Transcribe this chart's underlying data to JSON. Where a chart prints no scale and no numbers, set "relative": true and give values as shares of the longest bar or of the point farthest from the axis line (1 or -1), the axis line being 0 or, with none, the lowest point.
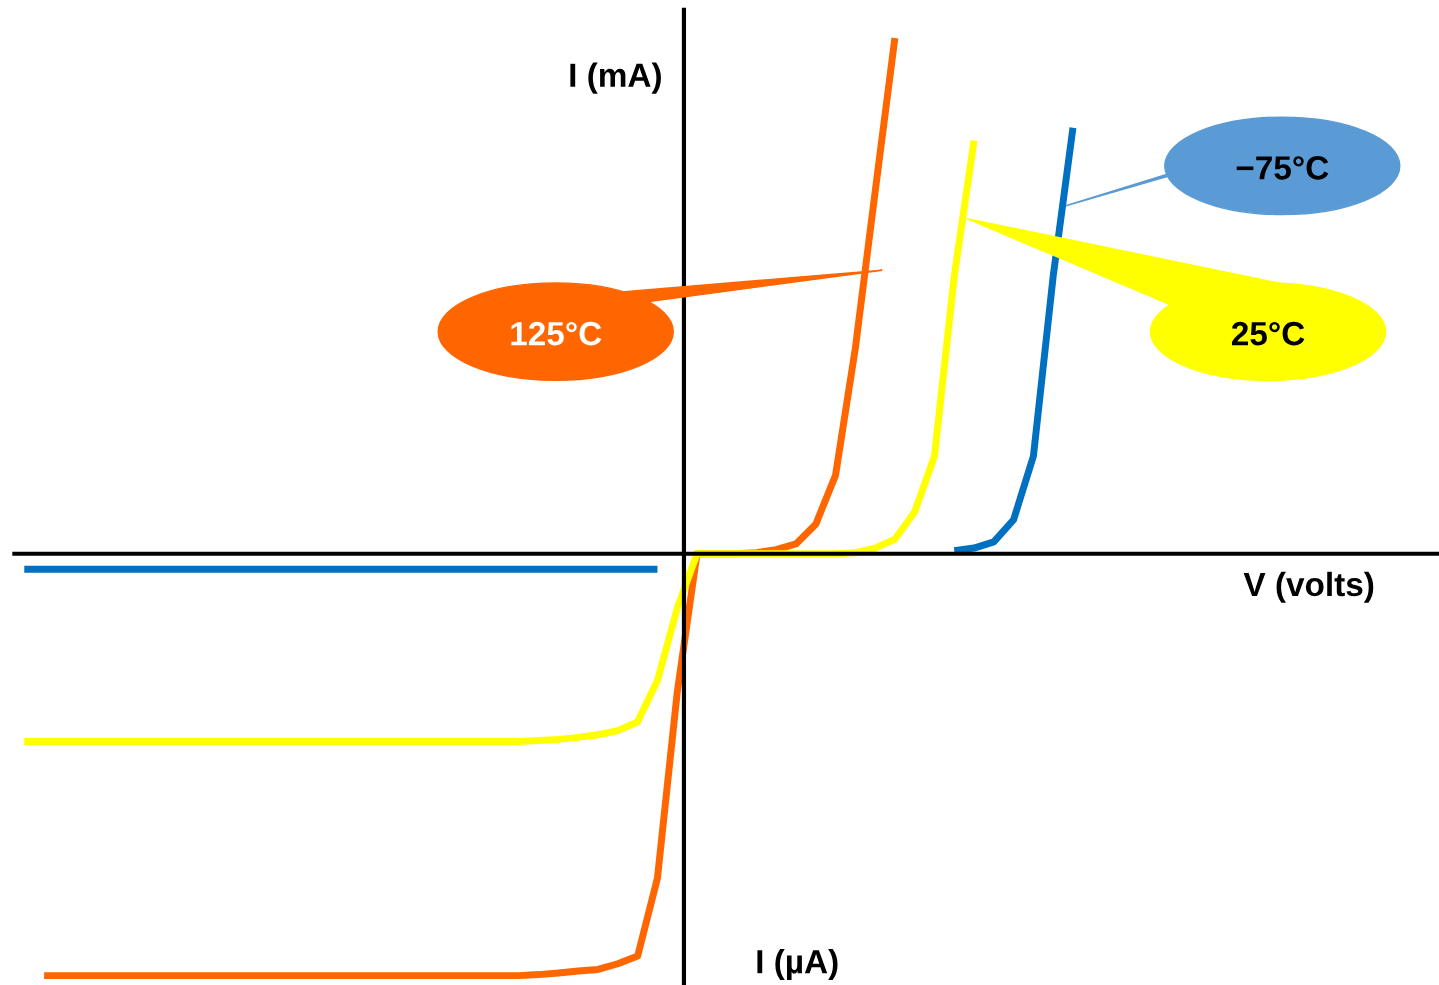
{
  "chart_data": {
    "type": "line",
    "relative": true,
    "ylabel": "I (mA)",
    "xlabel": "V (volts)",
    "annotations": [
      "I (µA)"
    ],
    "marker": "none",
    "line_style": "solid",
    "categories": [
      null,
      null,
      null,
      null,
      null,
      null,
      null,
      null,
      null,
      null,
      null,
      null,
      null,
      null,
      null,
      null,
      null,
      null,
      null,
      null,
      null,
      null,
      null,
      null,
      null,
      null,
      null,
      null,
      null,
      null,
      null,
      null,
      null,
      null,
      null,
      null,
      null,
      null,
      null,
      null,
      null,
      null,
      null,
      null,
      null,
      null,
      null,
      null,
      null,
      null,
      null,
      null,
      null,
      null,
      null,
      null,
      null,
      null,
      null,
      null,
      null,
      null,
      null,
      null,
      null,
      null,
      null,
      null,
      null,
      null,
      null,
      null
    ],
    "series": [
      {
        "name": "125°C",
        "color": "#ff6600",
        "values": [
          null,
          -0.818,
          -0.818,
          -0.818,
          -0.818,
          -0.818,
          -0.818,
          -0.818,
          -0.818,
          -0.818,
          -0.818,
          -0.818,
          -0.818,
          -0.818,
          -0.818,
          -0.818,
          -0.818,
          -0.818,
          -0.818,
          -0.818,
          -0.818,
          -0.818,
          -0.818,
          -0.818,
          -0.818,
          -0.818,
          -0.816,
          -0.813,
          -0.809,
          -0.806,
          -0.795,
          -0.78,
          -0.629,
          -0.269,
          0,
          0,
          0,
          0.002,
          0.008,
          0.019,
          0.057,
          0.152,
          0.398,
          0.701,
          1.0,
          null,
          null,
          null,
          null,
          null,
          null,
          null,
          null,
          null,
          null,
          null,
          null,
          null,
          null,
          null,
          null,
          null,
          null,
          null,
          null,
          null,
          null,
          null,
          null,
          null,
          null,
          null
        ]
      },
      {
        "name": "25°C",
        "color": "#ffff00",
        "values": [
          -0.364,
          -0.364,
          -0.364,
          -0.364,
          -0.364,
          -0.364,
          -0.364,
          -0.364,
          -0.364,
          -0.364,
          -0.364,
          -0.364,
          -0.364,
          -0.364,
          -0.364,
          -0.364,
          -0.364,
          -0.364,
          -0.364,
          -0.364,
          -0.364,
          -0.364,
          -0.364,
          -0.364,
          -0.364,
          -0.364,
          -0.362,
          -0.36,
          -0.356,
          -0.351,
          -0.343,
          -0.326,
          -0.246,
          -0.106,
          0,
          0,
          0,
          0,
          0,
          0,
          0,
          0,
          0.002,
          0.011,
          0.028,
          0.081,
          0.189,
          0.538,
          0.801,
          null,
          null,
          null,
          null,
          null,
          null,
          null,
          null,
          null,
          null,
          null,
          null,
          null,
          null,
          null,
          null,
          null,
          null,
          null,
          null,
          null,
          null,
          null
        ]
      },
      {
        "name": "−75°C",
        "color": "#0070c0",
        "values": [
          -0.03,
          -0.03,
          -0.03,
          -0.03,
          -0.03,
          -0.03,
          -0.03,
          -0.03,
          -0.03,
          -0.03,
          -0.03,
          -0.03,
          -0.03,
          -0.03,
          -0.03,
          -0.03,
          -0.03,
          -0.03,
          -0.03,
          -0.03,
          -0.03,
          -0.03,
          -0.03,
          -0.03,
          -0.03,
          -0.03,
          -0.03,
          -0.03,
          -0.03,
          -0.03,
          -0.03,
          -0.03,
          -0.03,
          null,
          null,
          null,
          null,
          null,
          null,
          null,
          null,
          null,
          null,
          null,
          null,
          null,
          null,
          0.006,
          0.011,
          0.023,
          0.066,
          0.189,
          0.538,
          0.826,
          null,
          null,
          null,
          null,
          null,
          null,
          null,
          null,
          null,
          null,
          null,
          null,
          null,
          null,
          null,
          null,
          null,
          null
        ]
      }
    ]
  }
}
